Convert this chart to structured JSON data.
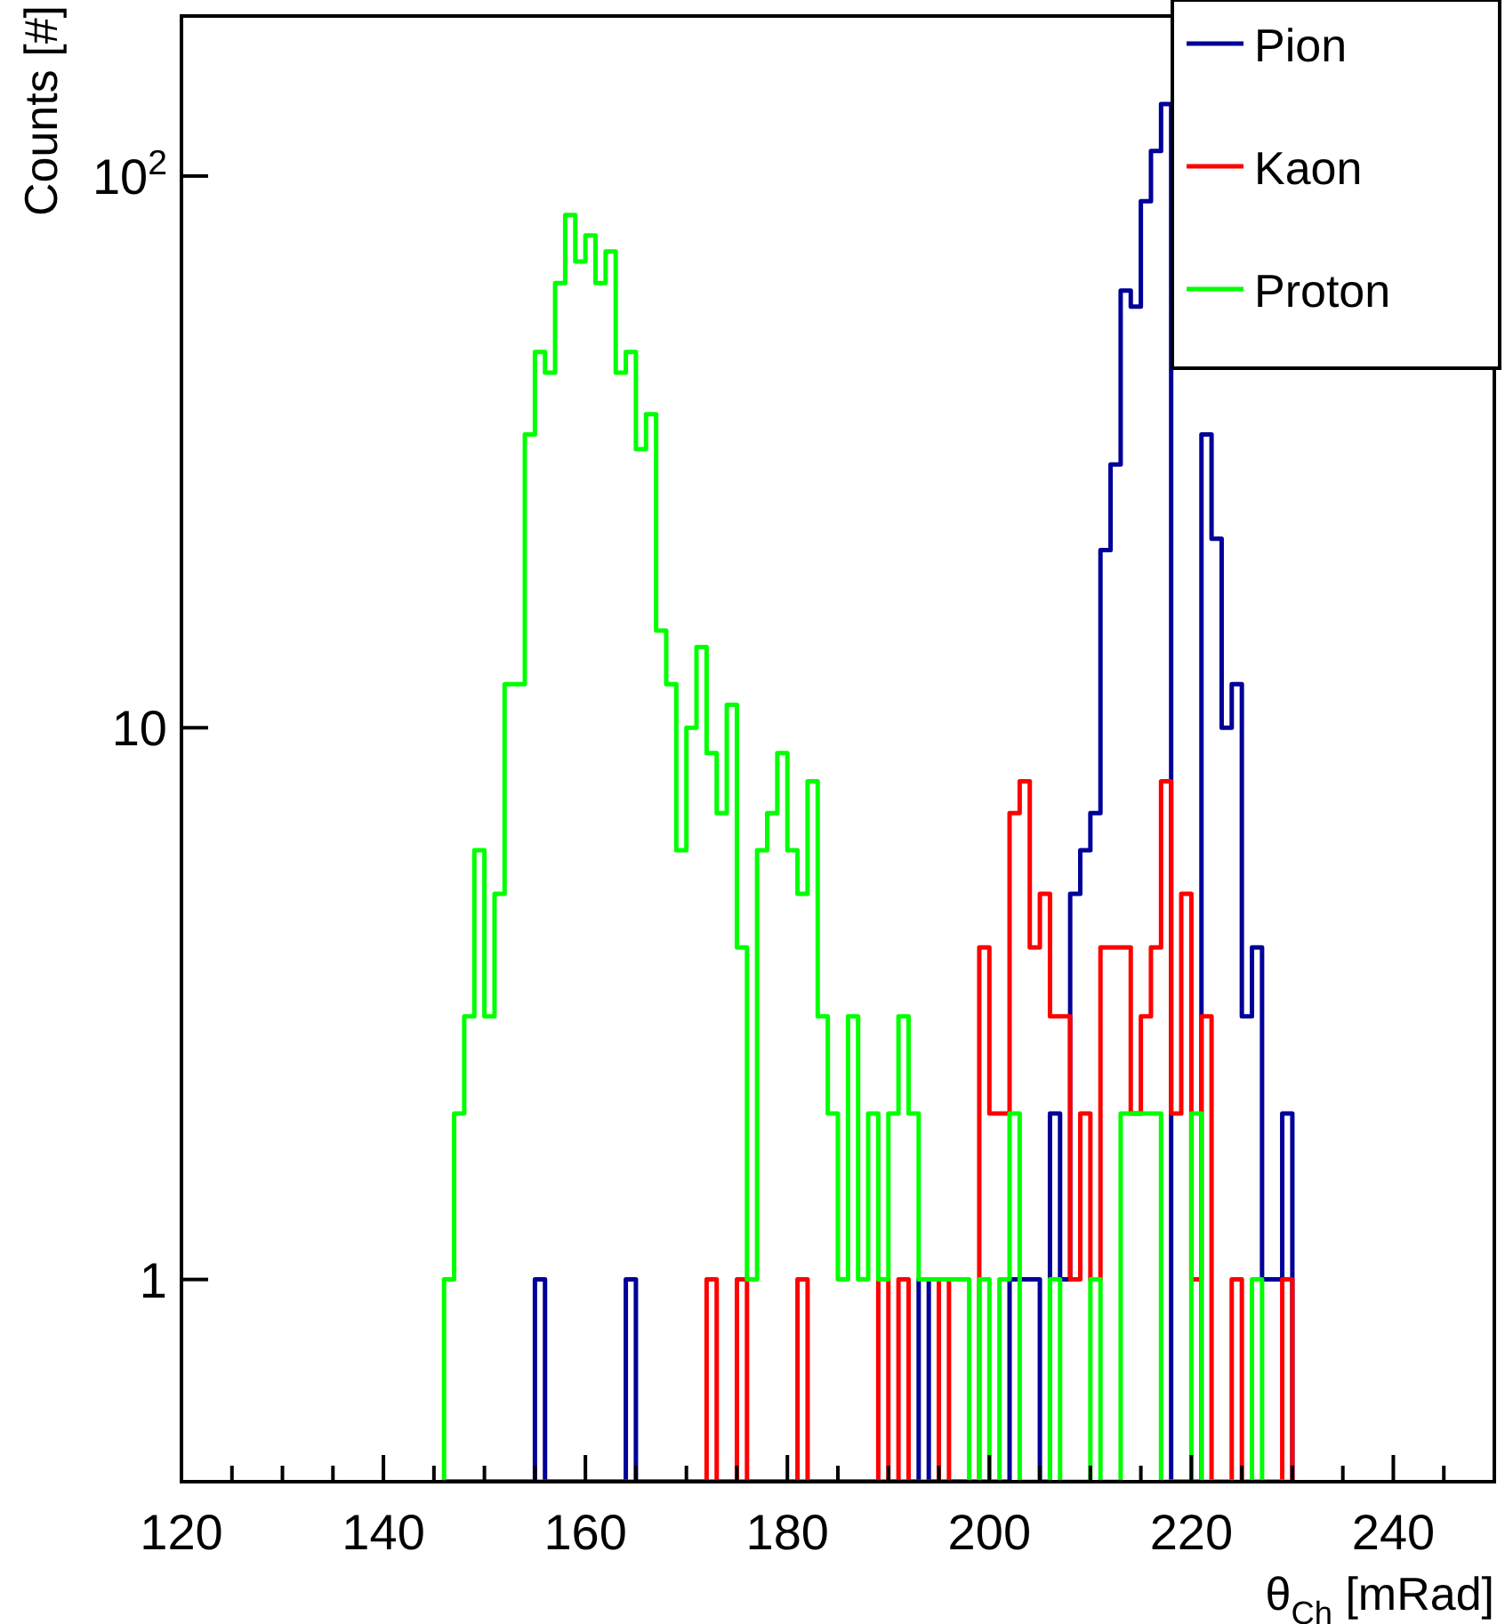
{
  "chart_data": {
    "type": "histogram",
    "xlabel": "θ$_{Ch}$ [mRad]",
    "ylabel": "Counts [#]",
    "bins": [
      146,
      147,
      148,
      149,
      150,
      151,
      152,
      153,
      154,
      155,
      156,
      157,
      158,
      159,
      160,
      161,
      162,
      163,
      164,
      165,
      166,
      167,
      168,
      169,
      170,
      171,
      172,
      173,
      174,
      175,
      176,
      177,
      178,
      179,
      180,
      181,
      182,
      183,
      184,
      185,
      186,
      187,
      188,
      189,
      190,
      191,
      192,
      193,
      194,
      195,
      196,
      197,
      198,
      199,
      200,
      201,
      202,
      203,
      204,
      205,
      206,
      207,
      208,
      209,
      210,
      211,
      212,
      213,
      214,
      215,
      216,
      217,
      218,
      219,
      220,
      221,
      222,
      223,
      224,
      225,
      226,
      227,
      228,
      229,
      230
    ],
    "series": [
      {
        "name": "Pion",
        "color": "#000099",
        "values": [
          null,
          null,
          null,
          null,
          null,
          null,
          null,
          null,
          null,
          1,
          null,
          null,
          null,
          null,
          null,
          null,
          null,
          null,
          1,
          null,
          null,
          null,
          null,
          null,
          null,
          null,
          null,
          null,
          null,
          null,
          null,
          null,
          null,
          null,
          null,
          null,
          null,
          null,
          null,
          null,
          null,
          null,
          null,
          null,
          null,
          null,
          null,
          1,
          null,
          null,
          null,
          null,
          null,
          null,
          null,
          null,
          1,
          1,
          1,
          null,
          2,
          1,
          5,
          6,
          7,
          21,
          30,
          62,
          58,
          90,
          111,
          135,
          null,
          null,
          null,
          34,
          22,
          10,
          12,
          3,
          4,
          1,
          1,
          2
        ]
      },
      {
        "name": "Kaon",
        "color": "#ff0000",
        "values": [
          null,
          null,
          null,
          null,
          null,
          null,
          null,
          null,
          null,
          null,
          null,
          null,
          null,
          null,
          null,
          null,
          null,
          null,
          null,
          null,
          null,
          null,
          null,
          null,
          null,
          null,
          1,
          null,
          null,
          1,
          null,
          null,
          null,
          null,
          null,
          1,
          null,
          null,
          null,
          null,
          null,
          null,
          null,
          1,
          null,
          1,
          null,
          null,
          null,
          1,
          null,
          null,
          null,
          4,
          2,
          2,
          7,
          8,
          4,
          5,
          3,
          3,
          1,
          2,
          1,
          4,
          4,
          4,
          2,
          3,
          4,
          8,
          2,
          5,
          1,
          3,
          null,
          null,
          1,
          null,
          null,
          null,
          null,
          1
        ]
      },
      {
        "name": "Proton",
        "color": "#00ff00",
        "values": [
          1,
          2,
          3,
          6,
          3,
          5,
          12,
          12,
          34,
          48,
          44,
          64,
          85,
          70,
          78,
          64,
          73,
          44,
          48,
          32,
          37,
          15,
          12,
          6,
          10,
          14,
          9,
          7,
          11,
          4,
          1,
          6,
          7,
          9,
          6,
          5,
          8,
          3,
          2,
          1,
          3,
          1,
          2,
          1,
          2,
          3,
          2,
          1,
          1,
          1,
          1,
          1,
          null,
          1,
          null,
          1,
          2,
          null,
          null,
          null,
          1,
          null,
          null,
          null,
          1,
          null,
          null,
          2,
          2,
          2,
          2,
          null,
          null,
          null,
          2,
          null,
          null,
          null,
          null,
          null,
          1,
          null,
          null,
          null
        ]
      }
    ],
    "xlim": [
      120,
      250
    ],
    "xticks": [
      120,
      {
        "value": 125,
        "label": null
      },
      {
        "value": 130,
        "label": null
      },
      {
        "value": 135,
        "label": null
      },
      140,
      {
        "value": 145,
        "label": null
      },
      {
        "value": 150,
        "label": null
      },
      {
        "value": 155,
        "label": null
      },
      160,
      {
        "value": 165,
        "label": null
      },
      {
        "value": 170,
        "label": null
      },
      {
        "value": 175,
        "label": null
      },
      180,
      {
        "value": 185,
        "label": null
      },
      {
        "value": 190,
        "label": null
      },
      {
        "value": 195,
        "label": null
      },
      200,
      {
        "value": 205,
        "label": null
      },
      {
        "value": 210,
        "label": null
      },
      {
        "value": 215,
        "label": null
      },
      220,
      {
        "value": 225,
        "label": null
      },
      {
        "value": 230,
        "label": null
      },
      {
        "value": 235,
        "label": null
      },
      240,
      {
        "value": 245,
        "label": null
      },
      {
        "value": 250,
        "label": null
      }
    ],
    "ylim": [
      0.43,
      195
    ],
    "yticks": [
      1,
      10,
      {
        "value": 100,
        "label": "10$^{2}$"
      }
    ],
    "log": "y",
    "legend": "top right"
  }
}
